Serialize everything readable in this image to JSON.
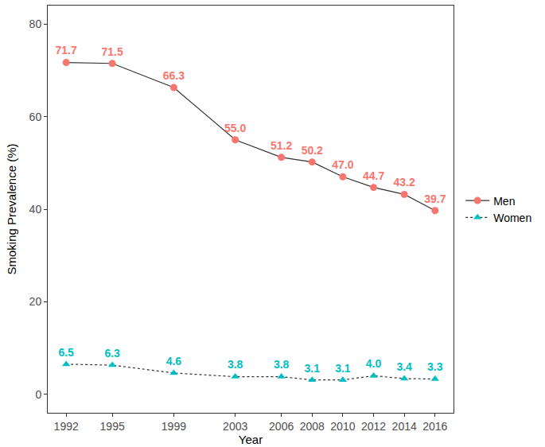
{
  "chart_data": {
    "type": "line",
    "x_label": "Year",
    "y_label": "Smoking Prevalence (%)",
    "x": [
      1992,
      1995,
      1999,
      2003,
      2006,
      2008,
      2010,
      2012,
      2014,
      2016
    ],
    "xlim": [
      1990.8,
      2017.2
    ],
    "xticks": [
      1992,
      1995,
      1999,
      2003,
      2006,
      2008,
      2010,
      2012,
      2014,
      2016
    ],
    "ylim": [
      -4,
      84
    ],
    "yticks": [
      0,
      20,
      40,
      60,
      80
    ],
    "grid": false,
    "legend": "right",
    "data_labels": true,
    "series": [
      {
        "name": "Men",
        "color": "#F8766D",
        "marker": "circle",
        "line_style": "solid",
        "values": [
          71.7,
          71.5,
          66.3,
          55.0,
          51.2,
          50.2,
          47.0,
          44.7,
          43.2,
          39.7
        ],
        "value_labels": [
          "71.7",
          "71.5",
          "66.3",
          "55.0",
          "51.2",
          "50.2",
          "47.0",
          "44.7",
          "43.2",
          "39.7"
        ]
      },
      {
        "name": "Women",
        "color": "#00BFC4",
        "marker": "triangle-up",
        "line_style": "dotted",
        "values": [
          6.5,
          6.3,
          4.6,
          3.8,
          3.8,
          3.1,
          3.1,
          4.0,
          3.4,
          3.3
        ],
        "value_labels": [
          "6.5",
          "6.3",
          "4.6",
          "3.8",
          "3.8",
          "3.1",
          "3.1",
          "4.0",
          "3.4",
          "3.3"
        ]
      }
    ]
  }
}
